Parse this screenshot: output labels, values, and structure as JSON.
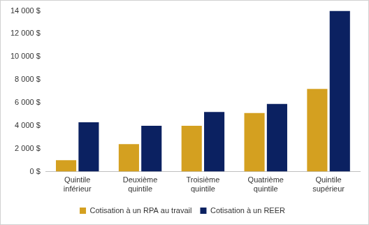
{
  "chart_data": {
    "type": "bar",
    "categories": [
      "Quintile inférieur",
      "Deuxième quintile",
      "Troisième quintile",
      "Quatrième quintile",
      "Quintile supérieur"
    ],
    "series": [
      {
        "name": "Cotisation à un RPA au travail",
        "color": "#D4A020",
        "values": [
          1000,
          2400,
          4000,
          5100,
          7200
        ]
      },
      {
        "name": "Cotisation à un REER",
        "color": "#0B2161",
        "values": [
          4300,
          4000,
          5200,
          5900,
          14000
        ]
      }
    ],
    "ylim": [
      0,
      14000
    ],
    "yticks": [
      {
        "value": 0,
        "label": "0 $"
      },
      {
        "value": 2000,
        "label": "2 000 $"
      },
      {
        "value": 4000,
        "label": "4 000 $"
      },
      {
        "value": 6000,
        "label": "6 000 $"
      },
      {
        "value": 8000,
        "label": "8 000 $"
      },
      {
        "value": 10000,
        "label": "10 000 $"
      },
      {
        "value": 12000,
        "label": "12 000 $"
      },
      {
        "value": 14000,
        "label": "14 000 $"
      }
    ],
    "grid": false,
    "legend": "bottom"
  }
}
